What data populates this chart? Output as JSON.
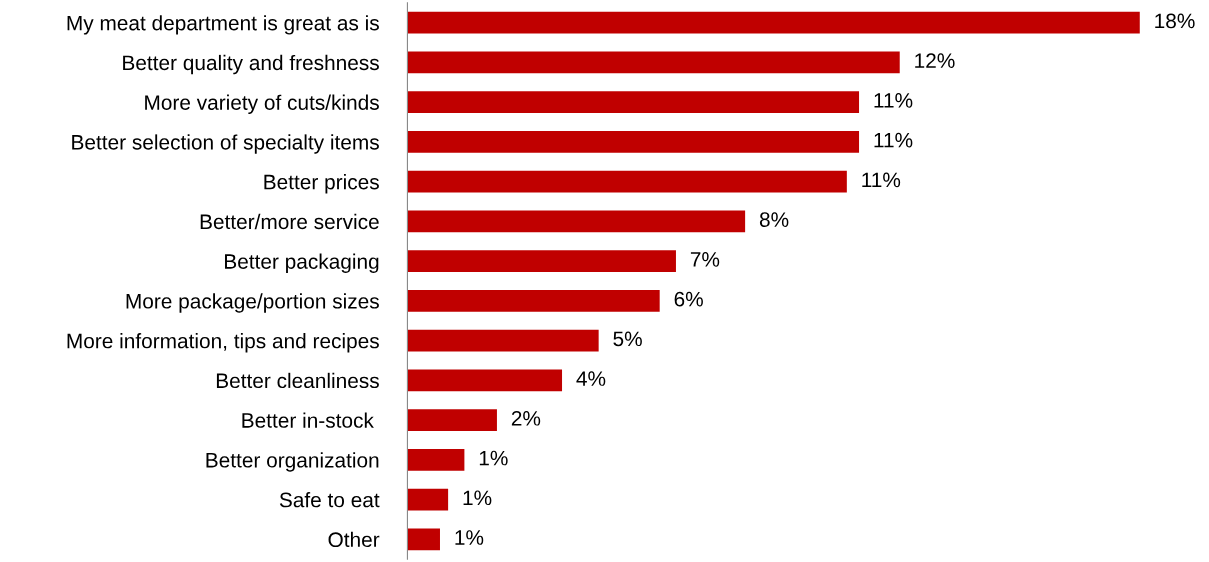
{
  "chart_data": {
    "type": "bar",
    "orientation": "horizontal",
    "color": "#c00000",
    "categories": [
      "My meat department is great as is",
      "Better quality and freshness",
      "More variety of cuts/kinds",
      "Better selection of specialty items",
      "Better prices",
      "Better/more service",
      "Better packaging",
      "More package/portion sizes",
      "More information, tips and recipes",
      "Better cleanliness",
      "Better in-stock ",
      "Better organization",
      "Safe to eat",
      "Other"
    ],
    "values": [
      18.0,
      12.1,
      11.1,
      11.1,
      10.8,
      8.3,
      6.6,
      6.2,
      4.7,
      3.8,
      2.2,
      1.4,
      1.0,
      0.8
    ],
    "value_labels": [
      "18%",
      "12%",
      "11%",
      "11%",
      "11%",
      "8%",
      "7%",
      "6%",
      "5%",
      "4%",
      "2%",
      "1%",
      "1%",
      "1%"
    ],
    "grid": false,
    "legend": false
  }
}
